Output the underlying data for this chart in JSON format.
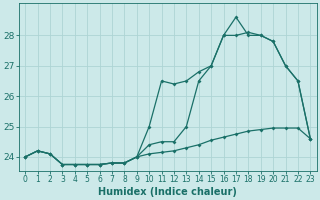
{
  "background_color": "#cce9e9",
  "grid_color": "#aed4d4",
  "line_color": "#1a7068",
  "xlabel": "Humidex (Indice chaleur)",
  "xlim": [
    -0.5,
    23.5
  ],
  "ylim": [
    23.55,
    29.05
  ],
  "yticks": [
    24,
    25,
    26,
    27,
    28
  ],
  "xticks": [
    0,
    1,
    2,
    3,
    4,
    5,
    6,
    7,
    8,
    9,
    10,
    11,
    12,
    13,
    14,
    15,
    16,
    17,
    18,
    19,
    20,
    21,
    22,
    23
  ],
  "line1_x": [
    0,
    1,
    2,
    3,
    4,
    5,
    6,
    7,
    8,
    9,
    10,
    11,
    12,
    13,
    14,
    15,
    16,
    17,
    18,
    19,
    20,
    21,
    22,
    23
  ],
  "line1_y": [
    24.0,
    24.2,
    24.1,
    23.75,
    23.75,
    23.75,
    23.75,
    23.8,
    23.8,
    24.0,
    24.4,
    24.5,
    24.5,
    25.0,
    26.5,
    27.0,
    28.0,
    28.6,
    28.0,
    28.0,
    27.8,
    27.0,
    26.5,
    24.6
  ],
  "line2_x": [
    0,
    1,
    2,
    3,
    4,
    5,
    6,
    7,
    8,
    9,
    10,
    11,
    12,
    13,
    14,
    15,
    16,
    17,
    18,
    19,
    20,
    21,
    22,
    23
  ],
  "line2_y": [
    24.0,
    24.2,
    24.1,
    23.75,
    23.75,
    23.75,
    23.75,
    23.8,
    23.8,
    24.0,
    25.0,
    26.5,
    26.4,
    26.5,
    26.8,
    27.0,
    28.0,
    28.0,
    28.1,
    28.0,
    27.8,
    27.0,
    26.5,
    24.6
  ],
  "line3_x": [
    0,
    1,
    2,
    3,
    4,
    5,
    6,
    7,
    8,
    9,
    10,
    11,
    12,
    13,
    14,
    15,
    16,
    17,
    18,
    19,
    20,
    21,
    22,
    23
  ],
  "line3_y": [
    24.0,
    24.2,
    24.1,
    23.75,
    23.75,
    23.75,
    23.75,
    23.8,
    23.8,
    24.0,
    24.1,
    24.15,
    24.2,
    24.3,
    24.4,
    24.55,
    24.65,
    24.75,
    24.85,
    24.9,
    24.95,
    24.95,
    24.95,
    24.6
  ],
  "marker": "D",
  "marker_size": 2.0,
  "linewidth": 0.9
}
